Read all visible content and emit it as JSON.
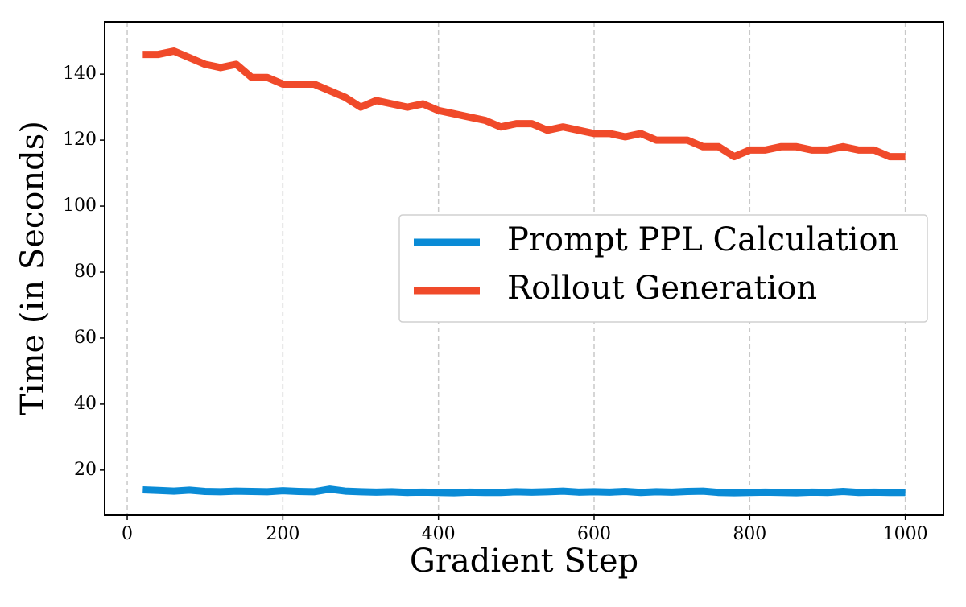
{
  "chart_data": {
    "type": "line",
    "x_label": "Gradient Step",
    "y_label": "Time (in Seconds)",
    "x": [
      20,
      40,
      60,
      80,
      100,
      120,
      140,
      160,
      180,
      200,
      220,
      240,
      260,
      280,
      300,
      320,
      340,
      360,
      380,
      400,
      420,
      440,
      460,
      480,
      500,
      520,
      540,
      560,
      580,
      600,
      620,
      640,
      660,
      680,
      700,
      720,
      740,
      760,
      780,
      800,
      820,
      840,
      860,
      880,
      900,
      920,
      940,
      960,
      980,
      1000
    ],
    "series": [
      {
        "name": "Prompt PPL Calculation",
        "color": "#0a8bd6",
        "values": [
          14,
          13.8,
          13.6,
          13.9,
          13.5,
          13.4,
          13.6,
          13.5,
          13.4,
          13.7,
          13.5,
          13.4,
          14.2,
          13.6,
          13.4,
          13.3,
          13.4,
          13.2,
          13.3,
          13.2,
          13.1,
          13.3,
          13.2,
          13.2,
          13.4,
          13.3,
          13.4,
          13.6,
          13.3,
          13.4,
          13.3,
          13.5,
          13.2,
          13.4,
          13.3,
          13.5,
          13.6,
          13.2,
          13.1,
          13.2,
          13.3,
          13.2,
          13.1,
          13.3,
          13.2,
          13.5,
          13.2,
          13.3,
          13.2,
          13.2
        ]
      },
      {
        "name": "Rollout Generation",
        "color": "#f04a2a",
        "values": [
          146,
          146,
          147,
          145,
          143,
          142,
          143,
          139,
          139,
          137,
          137,
          137,
          135,
          133,
          130,
          132,
          131,
          130,
          131,
          129,
          128,
          127,
          126,
          124,
          125,
          125,
          123,
          124,
          123,
          122,
          122,
          121,
          122,
          120,
          120,
          120,
          118,
          118,
          115,
          117,
          117,
          118,
          118,
          117,
          117,
          118,
          117,
          117,
          115,
          115
        ]
      }
    ],
    "xlim": [
      -29,
      1049
    ],
    "ylim": [
      6.3,
      155.9
    ],
    "xticks": [
      0,
      200,
      400,
      600,
      800,
      1000
    ],
    "yticks": [
      20,
      40,
      60,
      80,
      100,
      120,
      140
    ],
    "grid": "x",
    "legend": "center right"
  }
}
